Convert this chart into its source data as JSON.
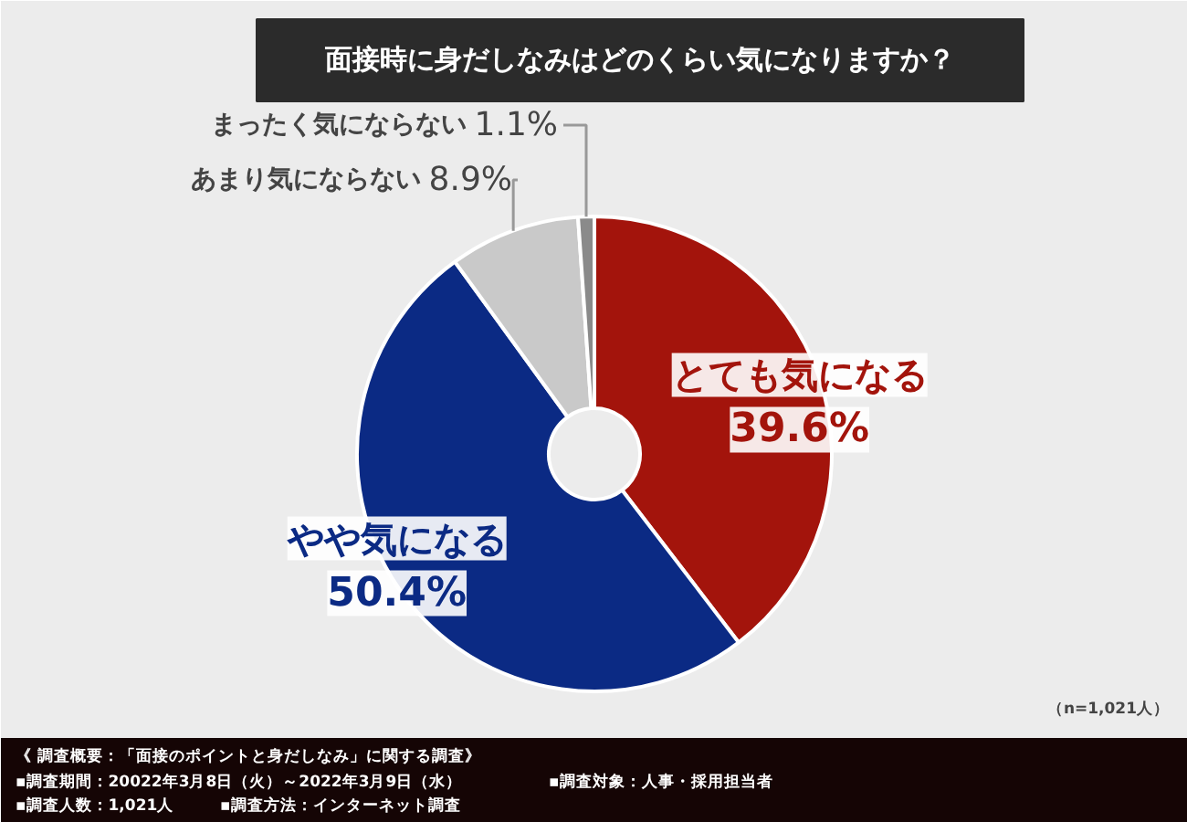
{
  "chart_data": {
    "type": "donut",
    "title": "面接時に身だしなみはどのくらい気になりますか？",
    "categories": [
      "とても気になる",
      "やや気になる",
      "あまり気にならない",
      "まったく気にならない"
    ],
    "values": [
      39.6,
      50.4,
      8.9,
      1.1
    ],
    "colors": [
      "#a3140c",
      "#0b2a84",
      "#c9c9c9",
      "#8a8a8a"
    ],
    "value_labels": [
      "39.6%",
      "50.4%",
      "8.9%",
      "1.1%"
    ],
    "annotations": [
      "（n=1,021人）",
      "《 調査概要：「面接のポイントと身だしなみ」に関する調査》",
      "▪調査期間：20022年3月8日（火）～2022年3月9日（水）",
      "▪調査対象：人事・採用担当者",
      "▪調査人数：1,021人",
      "▪調査方法：インターネット調査"
    ]
  }
}
